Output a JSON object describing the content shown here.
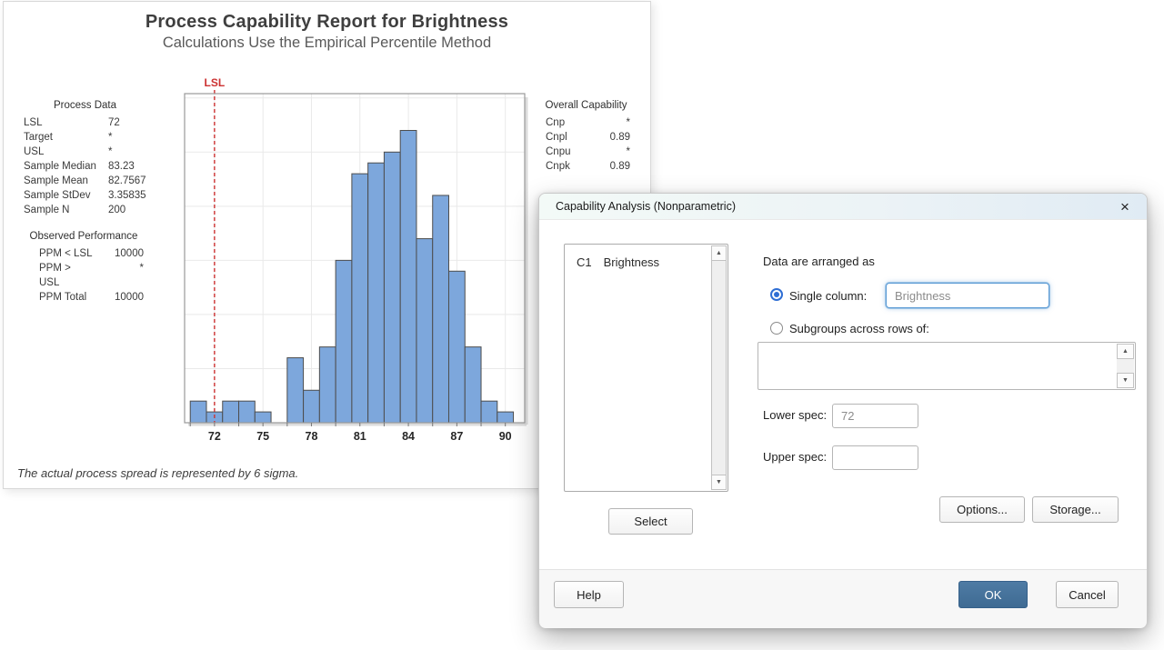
{
  "report": {
    "title": "Process Capability Report for Brightness",
    "subtitle": "Calculations Use the Empirical Percentile Method",
    "process_data": {
      "title": "Process Data",
      "rows": [
        {
          "label": "LSL",
          "value": "72"
        },
        {
          "label": "Target",
          "value": "*"
        },
        {
          "label": "USL",
          "value": "*"
        },
        {
          "label": "Sample Median",
          "value": "83.23"
        },
        {
          "label": "Sample Mean",
          "value": "82.7567"
        },
        {
          "label": "Sample StDev",
          "value": "3.35835"
        },
        {
          "label": "Sample N",
          "value": "200"
        }
      ]
    },
    "observed_performance": {
      "title": "Observed Performance",
      "rows": [
        {
          "label": "PPM < LSL",
          "value": "10000"
        },
        {
          "label": "PPM > USL",
          "value": "*"
        },
        {
          "label": "PPM Total",
          "value": "10000"
        }
      ]
    },
    "overall_capability": {
      "title": "Overall Capability",
      "rows": [
        {
          "label": "Cnp",
          "value": "*"
        },
        {
          "label": "Cnpl",
          "value": "0.89"
        },
        {
          "label": "Cnpu",
          "value": "*"
        },
        {
          "label": "Cnpk",
          "value": "0.89"
        }
      ]
    },
    "footnote": "The actual process spread is represented by 6 sigma."
  },
  "chart_data": {
    "type": "bar",
    "subtype": "histogram",
    "title": "Process Capability Report for Brightness",
    "xlabel": "",
    "ylabel": "",
    "bin_centers": [
      71,
      72,
      73,
      74,
      75,
      76,
      77,
      78,
      79,
      80,
      81,
      82,
      83,
      84,
      85,
      86,
      87,
      88,
      89,
      90
    ],
    "values": [
      2,
      1,
      2,
      2,
      1,
      0,
      6,
      3,
      7,
      15,
      23,
      24,
      25,
      27,
      17,
      21,
      14,
      7,
      2,
      1
    ],
    "bin_width": 1,
    "x_tick_labels": [
      72,
      75,
      78,
      81,
      84,
      87,
      90
    ],
    "minor_tick_start": 70.5,
    "minor_tick_step": 1.5,
    "xlim": [
      70.15,
      91.2
    ],
    "ylim": [
      0,
      30.4
    ],
    "y_gridline_step": 5,
    "grid": true,
    "grid_color": "#e9e9e9",
    "bar_color": "#7DA7DC",
    "bar_edge_color": "#4D4D4D",
    "frame_color": "#9a9a9a",
    "lsl": {
      "label": "LSL",
      "value": 72,
      "color": "#CC3232",
      "style": "dashed"
    },
    "legend_position": "none",
    "y_axis_labels_shown": false
  },
  "dialog": {
    "title": "Capability Analysis (Nonparametric)",
    "list": {
      "items": [
        {
          "column": "C1",
          "name": "Brightness"
        }
      ]
    },
    "select_button": "Select",
    "arranged_label": "Data are arranged as",
    "single_column": {
      "label": "Single column:",
      "value": "Brightness",
      "selected": true
    },
    "subgroups": {
      "label": "Subgroups across rows of:",
      "value": "",
      "selected": false
    },
    "lower_spec": {
      "label": "Lower spec:",
      "value": "72"
    },
    "upper_spec": {
      "label": "Upper spec:",
      "value": ""
    },
    "buttons": {
      "options": "Options...",
      "storage": "Storage...",
      "help": "Help",
      "ok": "OK",
      "cancel": "Cancel"
    }
  },
  "icons": {
    "close": "×",
    "scroll_up": "▲",
    "scroll_down": "▼"
  },
  "colors": {
    "accent_blue": "#2E6ED4",
    "focus_border": "#5B9BD5",
    "ok_button": "#44719A",
    "bar_fill": "#7DA7DC",
    "bar_edge": "#4D4D4D",
    "lsl_red": "#CC3232"
  }
}
